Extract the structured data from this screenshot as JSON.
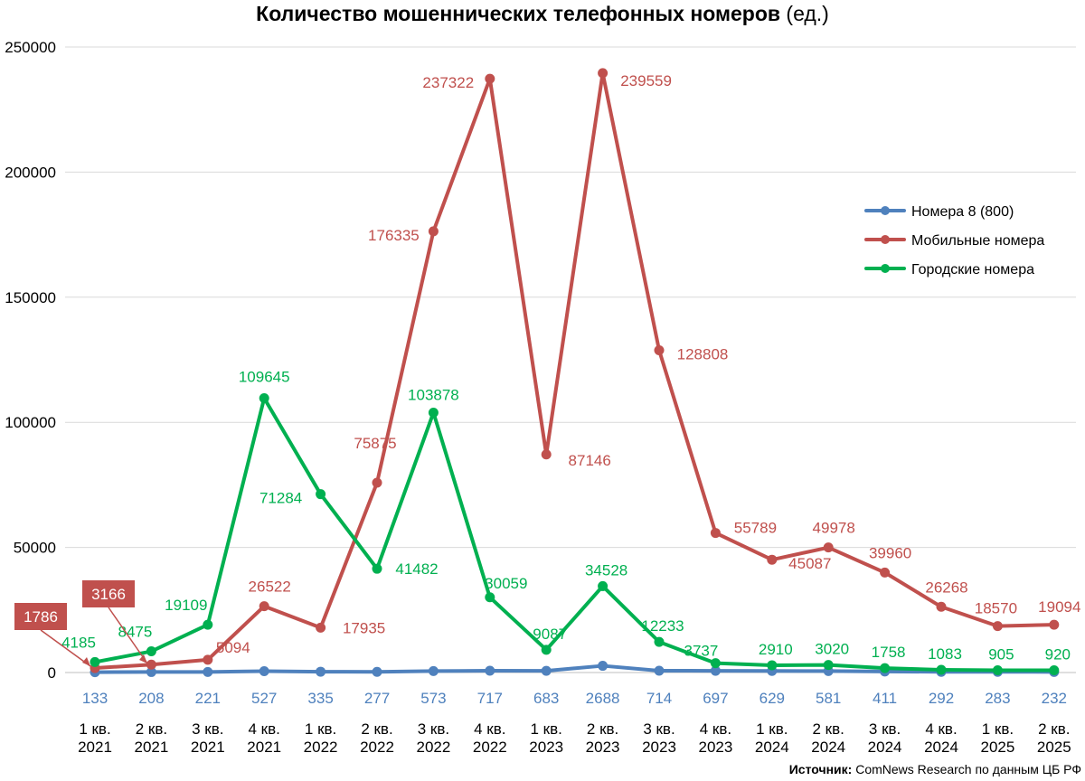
{
  "title": {
    "main": "Количество мошеннических телефонных номеров",
    "unit": "(ед.)"
  },
  "source": {
    "label": "Источник:",
    "text": "ComNews Research по данным ЦБ РФ"
  },
  "chart_data": {
    "type": "line",
    "categories": [
      [
        "1 кв.",
        "2021"
      ],
      [
        "2 кв.",
        "2021"
      ],
      [
        "3 кв.",
        "2021"
      ],
      [
        "4 кв.",
        "2021"
      ],
      [
        "1 кв.",
        "2022"
      ],
      [
        "2 кв.",
        "2022"
      ],
      [
        "3 кв.",
        "2022"
      ],
      [
        "4 кв.",
        "2022"
      ],
      [
        "1 кв.",
        "2023"
      ],
      [
        "2 кв.",
        "2023"
      ],
      [
        "3 кв.",
        "2023"
      ],
      [
        "4 кв.",
        "2023"
      ],
      [
        "1 кв.",
        "2024"
      ],
      [
        "2 кв.",
        "2024"
      ],
      [
        "3 кв.",
        "2024"
      ],
      [
        "4 кв.",
        "2024"
      ],
      [
        "1 кв.",
        "2025"
      ],
      [
        "2 кв.",
        "2025"
      ]
    ],
    "ylim": [
      0,
      250000
    ],
    "yticks": [
      0,
      50000,
      100000,
      150000,
      200000,
      250000
    ],
    "grid": true,
    "legend_position": "right",
    "series": [
      {
        "name": "Номера 8 (800)",
        "color": "#4f81bd",
        "values": [
          133,
          208,
          221,
          527,
          335,
          277,
          573,
          717,
          683,
          2688,
          714,
          697,
          629,
          581,
          411,
          292,
          283,
          232
        ]
      },
      {
        "name": "Мобильные номера",
        "color": "#c0504d",
        "values": [
          1786,
          3166,
          5094,
          26522,
          17935,
          75875,
          176335,
          237322,
          87146,
          239559,
          128808,
          55789,
          45087,
          49978,
          39960,
          26268,
          18570,
          19094
        ]
      },
      {
        "name": "Городские номера",
        "color": "#00b050",
        "values": [
          4185,
          8475,
          19109,
          109645,
          71284,
          41482,
          103878,
          30059,
          9087,
          34528,
          12233,
          3737,
          2910,
          3020,
          1758,
          1083,
          905,
          920
        ]
      }
    ]
  }
}
